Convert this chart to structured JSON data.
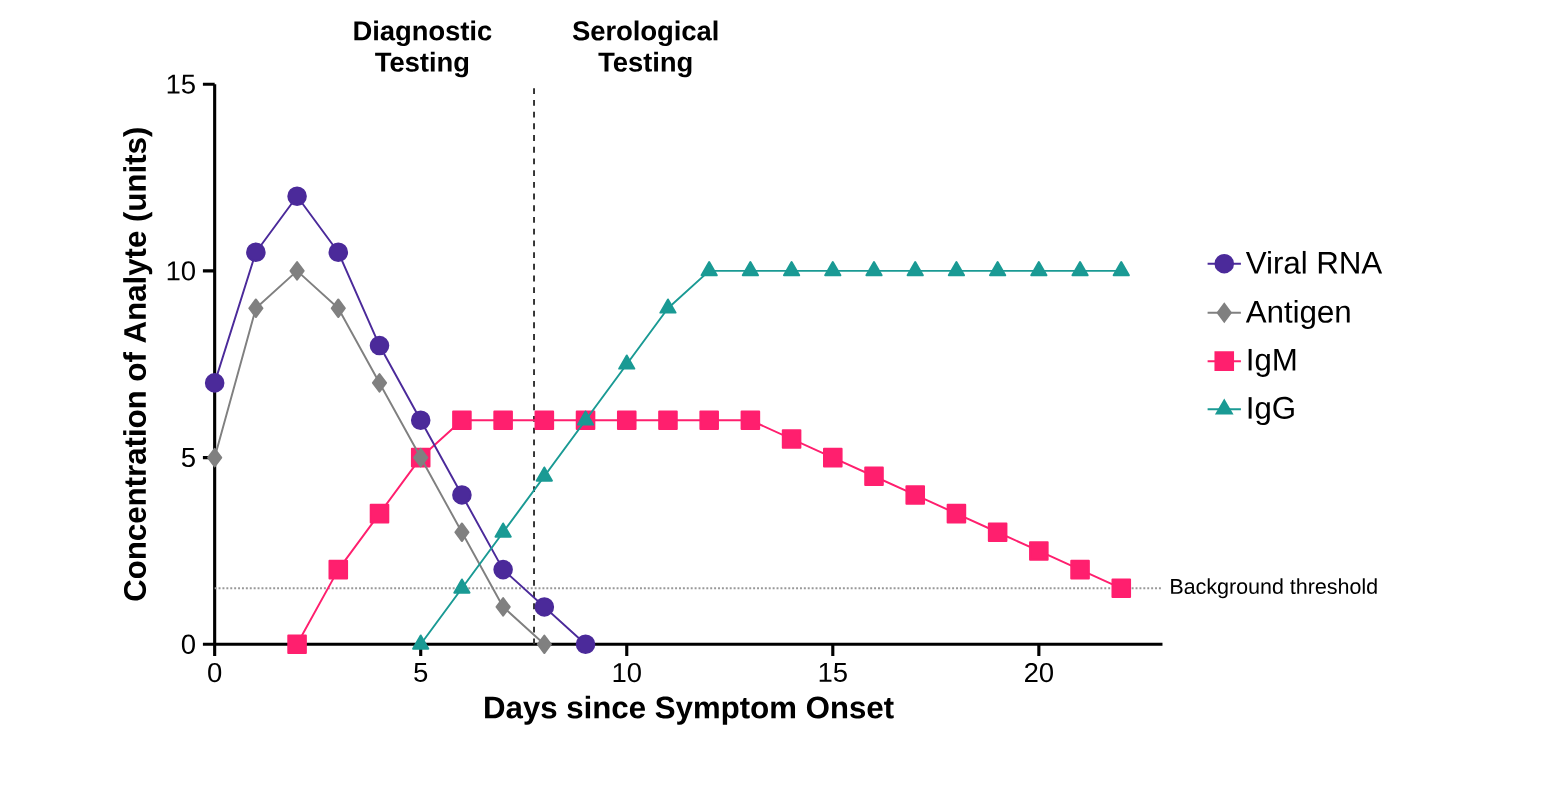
{
  "chart_data": {
    "type": "line",
    "xlabel": "Days since Symptom Onset",
    "ylabel": "Concentration of Analyte (units)",
    "xlim": [
      0,
      23
    ],
    "ylim": [
      0,
      15
    ],
    "xticks": [
      0,
      5,
      10,
      15,
      20
    ],
    "yticks": [
      0,
      5,
      10,
      15
    ],
    "grid": false,
    "legend": "right",
    "series": [
      {
        "name": "Viral RNA",
        "color": "#4b2a9a",
        "marker": "circle",
        "x": [
          0,
          1,
          2,
          3,
          4,
          5,
          6,
          7,
          8,
          9
        ],
        "values": [
          7,
          10.5,
          12,
          10.5,
          8,
          6,
          4,
          2,
          1,
          0
        ]
      },
      {
        "name": "Antigen",
        "color": "#808080",
        "marker": "diamond",
        "x": [
          0,
          1,
          2,
          3,
          4,
          5,
          6,
          7,
          8
        ],
        "values": [
          5,
          9,
          10,
          9,
          7,
          5,
          3,
          1,
          0
        ]
      },
      {
        "name": "IgM",
        "color": "#ff1f6e",
        "marker": "square",
        "x": [
          2,
          3,
          4,
          5,
          6,
          7,
          8,
          9,
          10,
          11,
          12,
          13,
          14,
          15,
          16,
          17,
          18,
          19,
          20,
          21,
          22
        ],
        "values": [
          0,
          2,
          3.5,
          5,
          6,
          6,
          6,
          6,
          6,
          6,
          6,
          6,
          5.5,
          5,
          4.5,
          4,
          3.5,
          3,
          2.5,
          2,
          1.5
        ]
      },
      {
        "name": "IgG",
        "color": "#1a9a94",
        "marker": "triangle",
        "x": [
          5,
          6,
          7,
          8,
          9,
          10,
          11,
          12,
          13,
          14,
          15,
          16,
          17,
          18,
          19,
          20,
          21,
          22
        ],
        "values": [
          0,
          1.5,
          3,
          4.5,
          6,
          7.5,
          9,
          10,
          10,
          10,
          10,
          10,
          10,
          10,
          10,
          10,
          10,
          10
        ]
      }
    ],
    "ref_lines": [
      {
        "axis": "x",
        "value": 7.75,
        "label": null,
        "color": "#333333",
        "line_style": "dashed"
      },
      {
        "axis": "y",
        "value": 1.5,
        "label": "Background threshold",
        "color": "#999999",
        "line_style": "dotted"
      }
    ],
    "annotations": [
      "Diagnostic Testing",
      "Serological Testing"
    ]
  }
}
